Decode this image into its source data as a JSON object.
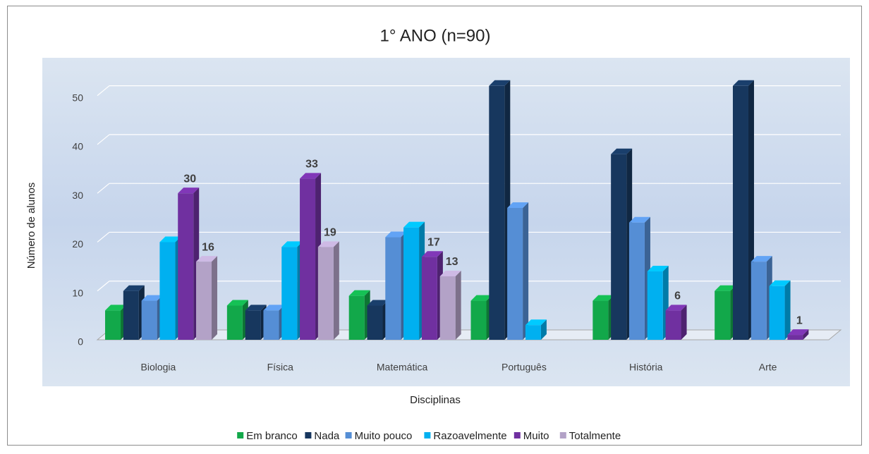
{
  "chart_data": {
    "type": "bar3d",
    "title": "1° ANO (n=90)",
    "x_label": "Disciplinas",
    "y_label": "Número de alunos",
    "categories": [
      "Biologia",
      "Física",
      "Matemática",
      "Português",
      "História",
      "Arte"
    ],
    "series": [
      {
        "name": "Em branco",
        "color": "#12a84a",
        "values": [
          6,
          7,
          9,
          8,
          8,
          10
        ]
      },
      {
        "name": "Nada",
        "color": "#17375e",
        "values": [
          10,
          6,
          7,
          52,
          38,
          52
        ]
      },
      {
        "name": "Muito pouco",
        "color": "#558ed5",
        "values": [
          8,
          6,
          21,
          27,
          24,
          16
        ]
      },
      {
        "name": "Razoavelmente",
        "color": "#00b0f0",
        "values": [
          20,
          19,
          23,
          3,
          14,
          11
        ]
      },
      {
        "name": "Muito",
        "color": "#7030a0",
        "values": [
          30,
          33,
          17,
          null,
          6,
          1
        ],
        "value_labels": [
          "30",
          "33",
          "17",
          null,
          "6",
          "1"
        ]
      },
      {
        "name": "Totalmente",
        "color": "#b3a2c7",
        "values": [
          16,
          19,
          13,
          null,
          null,
          null
        ],
        "value_labels": [
          "16",
          "19",
          "13",
          null,
          null,
          null
        ]
      }
    ],
    "ylim": [
      0,
      55
    ],
    "yticks": [
      0,
      10,
      20,
      30,
      40,
      50
    ],
    "grid": true,
    "legend": "bottom"
  }
}
